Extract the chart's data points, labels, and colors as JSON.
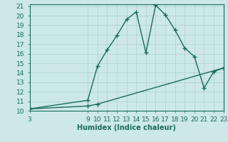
{
  "xlabel": "Humidex (Indice chaleur)",
  "xmin": 3,
  "xmax": 23,
  "ymin": 10,
  "ymax": 21,
  "bg_color": "#cce8e8",
  "grid_color": "#b0d0d0",
  "line_color": "#1a6b5a",
  "line1_x": [
    3,
    9,
    10,
    11,
    12,
    13,
    14,
    15,
    16,
    17,
    18,
    19,
    20,
    21,
    22,
    23
  ],
  "line1_y": [
    10.2,
    11.1,
    14.7,
    16.4,
    17.9,
    19.6,
    20.4,
    16.1,
    21.1,
    20.1,
    18.5,
    16.6,
    15.7,
    12.4,
    14.1,
    14.5
  ],
  "line2_x": [
    3,
    9,
    10,
    23
  ],
  "line2_y": [
    10.2,
    10.5,
    10.7,
    14.5
  ],
  "xticks": [
    3,
    9,
    10,
    11,
    12,
    13,
    14,
    15,
    16,
    17,
    18,
    19,
    20,
    21,
    22,
    23
  ],
  "yticks": [
    10,
    11,
    12,
    13,
    14,
    15,
    16,
    17,
    18,
    19,
    20,
    21
  ],
  "fontsize": 6.5,
  "xlabel_fontsize": 7,
  "markersize": 4,
  "linewidth": 1.0
}
